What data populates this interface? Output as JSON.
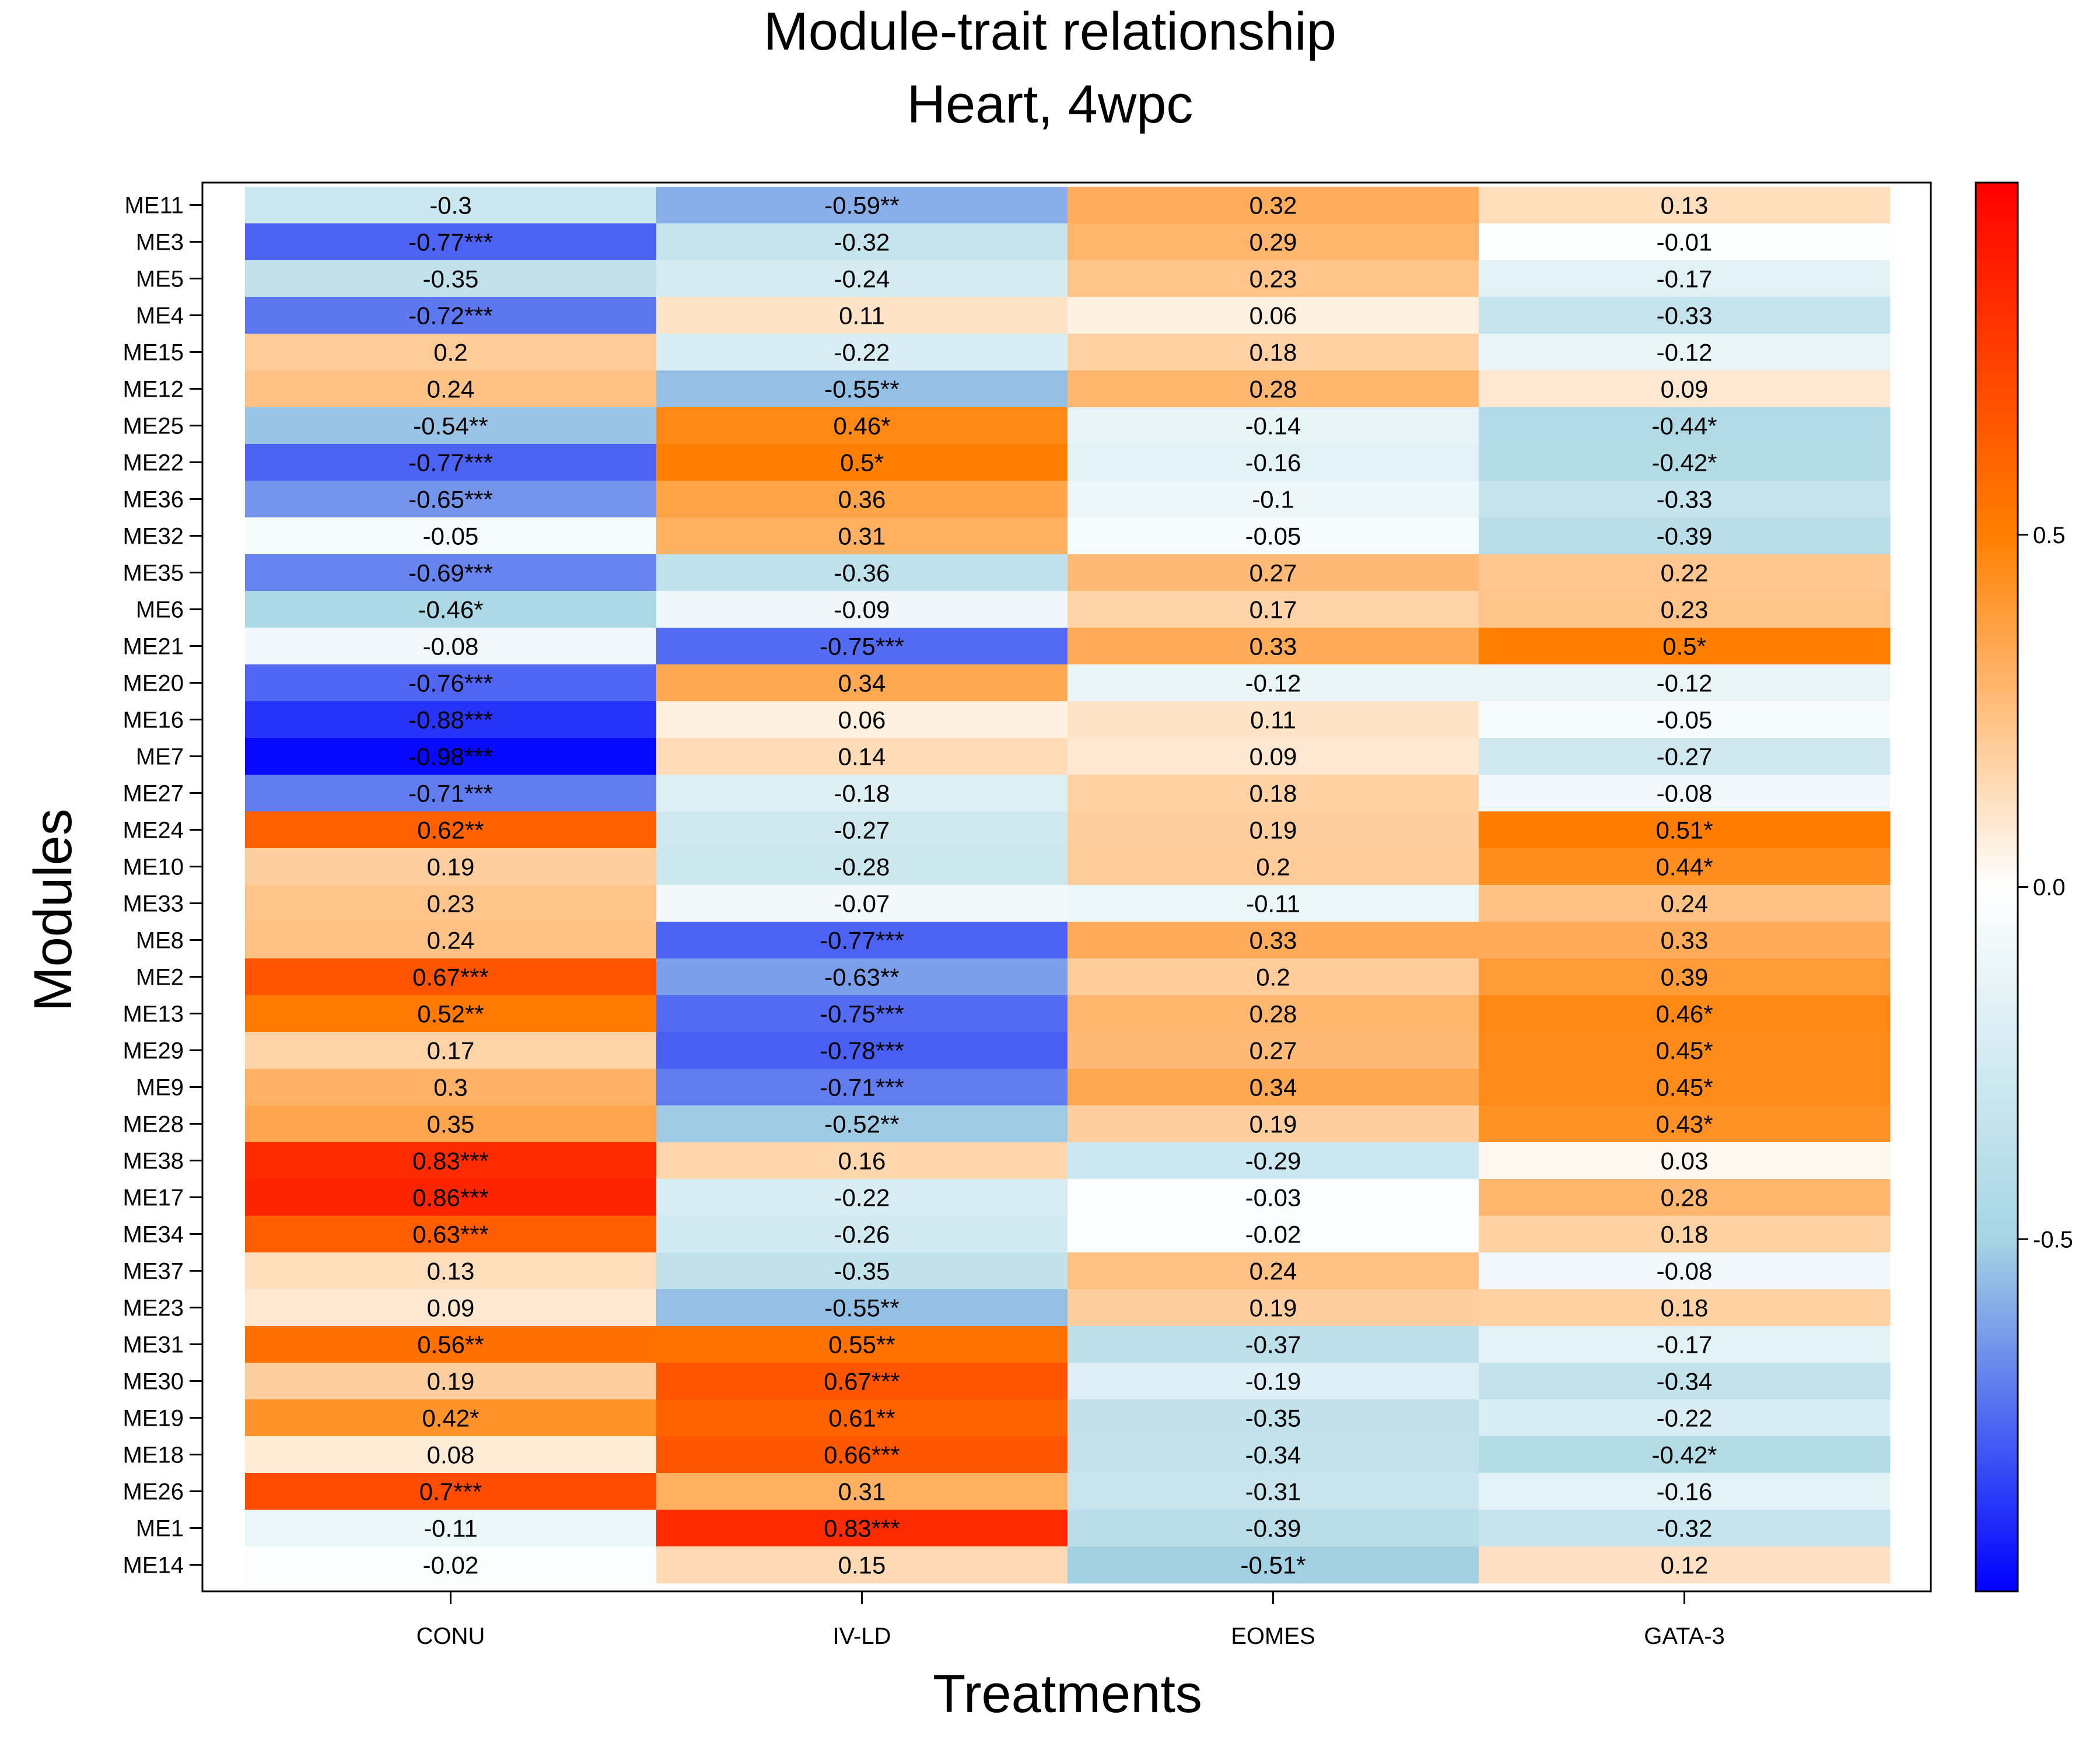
{
  "chart_data": {
    "type": "heatmap",
    "title": "Module-trait relationship",
    "subtitle": "Heart, 4wpc",
    "xlabel": "Treatments",
    "ylabel": "Modules",
    "x_categories": [
      "CONU",
      "IV-LD",
      "EOMES",
      "GATA-3"
    ],
    "y_categories": [
      "ME11",
      "ME3",
      "ME5",
      "ME4",
      "ME15",
      "ME12",
      "ME25",
      "ME22",
      "ME36",
      "ME32",
      "ME35",
      "ME6",
      "ME21",
      "ME20",
      "ME16",
      "ME7",
      "ME27",
      "ME24",
      "ME10",
      "ME33",
      "ME8",
      "ME2",
      "ME13",
      "ME29",
      "ME9",
      "ME28",
      "ME38",
      "ME17",
      "ME34",
      "ME37",
      "ME23",
      "ME31",
      "ME30",
      "ME19",
      "ME18",
      "ME26",
      "ME1",
      "ME14"
    ],
    "values": [
      [
        -0.3,
        -0.59,
        0.32,
        0.13
      ],
      [
        -0.77,
        -0.32,
        0.29,
        -0.01
      ],
      [
        -0.35,
        -0.24,
        0.23,
        -0.17
      ],
      [
        -0.72,
        0.11,
        0.06,
        -0.33
      ],
      [
        0.2,
        -0.22,
        0.18,
        -0.12
      ],
      [
        0.24,
        -0.55,
        0.28,
        0.09
      ],
      [
        -0.54,
        0.46,
        -0.14,
        -0.44
      ],
      [
        -0.77,
        0.5,
        -0.16,
        -0.42
      ],
      [
        -0.65,
        0.36,
        -0.1,
        -0.33
      ],
      [
        -0.05,
        0.31,
        -0.05,
        -0.39
      ],
      [
        -0.69,
        -0.36,
        0.27,
        0.22
      ],
      [
        -0.46,
        -0.09,
        0.17,
        0.23
      ],
      [
        -0.08,
        -0.75,
        0.33,
        0.5
      ],
      [
        -0.76,
        0.34,
        -0.12,
        -0.12
      ],
      [
        -0.88,
        0.06,
        0.11,
        -0.05
      ],
      [
        -0.98,
        0.14,
        0.09,
        -0.27
      ],
      [
        -0.71,
        -0.18,
        0.18,
        -0.08
      ],
      [
        0.62,
        -0.27,
        0.19,
        0.51
      ],
      [
        0.19,
        -0.28,
        0.2,
        0.44
      ],
      [
        0.23,
        -0.07,
        -0.11,
        0.24
      ],
      [
        0.24,
        -0.77,
        0.33,
        0.33
      ],
      [
        0.67,
        -0.63,
        0.2,
        0.39
      ],
      [
        0.52,
        -0.75,
        0.28,
        0.46
      ],
      [
        0.17,
        -0.78,
        0.27,
        0.45
      ],
      [
        0.3,
        -0.71,
        0.34,
        0.45
      ],
      [
        0.35,
        -0.52,
        0.19,
        0.43
      ],
      [
        0.83,
        0.16,
        -0.29,
        0.03
      ],
      [
        0.86,
        -0.22,
        -0.03,
        0.28
      ],
      [
        0.63,
        -0.26,
        -0.02,
        0.18
      ],
      [
        0.13,
        -0.35,
        0.24,
        -0.08
      ],
      [
        0.09,
        -0.55,
        0.19,
        0.18
      ],
      [
        0.56,
        0.55,
        -0.37,
        -0.17
      ],
      [
        0.19,
        0.67,
        -0.19,
        -0.34
      ],
      [
        0.42,
        0.61,
        -0.35,
        -0.22
      ],
      [
        0.08,
        0.66,
        -0.34,
        -0.42
      ],
      [
        0.7,
        0.31,
        -0.31,
        -0.16
      ],
      [
        -0.11,
        0.83,
        -0.39,
        -0.32
      ],
      [
        -0.02,
        0.15,
        -0.51,
        0.12
      ]
    ],
    "cell_labels": [
      [
        "-0.3",
        "-0.59**",
        "0.32",
        "0.13"
      ],
      [
        "-0.77***",
        "-0.32",
        "0.29",
        "-0.01"
      ],
      [
        "-0.35",
        "-0.24",
        "0.23",
        "-0.17"
      ],
      [
        "-0.72***",
        "0.11",
        "0.06",
        "-0.33"
      ],
      [
        "0.2",
        "-0.22",
        "0.18",
        "-0.12"
      ],
      [
        "0.24",
        "-0.55**",
        "0.28",
        "0.09"
      ],
      [
        "-0.54**",
        "0.46*",
        "-0.14",
        "-0.44*"
      ],
      [
        "-0.77***",
        "0.5*",
        "-0.16",
        "-0.42*"
      ],
      [
        "-0.65***",
        "0.36",
        "-0.1",
        "-0.33"
      ],
      [
        "-0.05",
        "0.31",
        "-0.05",
        "-0.39"
      ],
      [
        "-0.69***",
        "-0.36",
        "0.27",
        "0.22"
      ],
      [
        "-0.46*",
        "-0.09",
        "0.17",
        "0.23"
      ],
      [
        "-0.08",
        "-0.75***",
        "0.33",
        "0.5*"
      ],
      [
        "-0.76***",
        "0.34",
        "-0.12",
        "-0.12"
      ],
      [
        "-0.88***",
        "0.06",
        "0.11",
        "-0.05"
      ],
      [
        "-0.98***",
        "0.14",
        "0.09",
        "-0.27"
      ],
      [
        "-0.71***",
        "-0.18",
        "0.18",
        "-0.08"
      ],
      [
        "0.62**",
        "-0.27",
        "0.19",
        "0.51*"
      ],
      [
        "0.19",
        "-0.28",
        "0.2",
        "0.44*"
      ],
      [
        "0.23",
        "-0.07",
        "-0.11",
        "0.24"
      ],
      [
        "0.24",
        "-0.77***",
        "0.33",
        "0.33"
      ],
      [
        "0.67***",
        "-0.63**",
        "0.2",
        "0.39"
      ],
      [
        "0.52**",
        "-0.75***",
        "0.28",
        "0.46*"
      ],
      [
        "0.17",
        "-0.78***",
        "0.27",
        "0.45*"
      ],
      [
        "0.3",
        "-0.71***",
        "0.34",
        "0.45*"
      ],
      [
        "0.35",
        "-0.52**",
        "0.19",
        "0.43*"
      ],
      [
        "0.83***",
        "0.16",
        "-0.29",
        "0.03"
      ],
      [
        "0.86***",
        "-0.22",
        "-0.03",
        "0.28"
      ],
      [
        "0.63***",
        "-0.26",
        "-0.02",
        "0.18"
      ],
      [
        "0.13",
        "-0.35",
        "0.24",
        "-0.08"
      ],
      [
        "0.09",
        "-0.55**",
        "0.19",
        "0.18"
      ],
      [
        "0.56**",
        "0.55**",
        "-0.37",
        "-0.17"
      ],
      [
        "0.19",
        "0.67***",
        "-0.19",
        "-0.34"
      ],
      [
        "0.42*",
        "0.61**",
        "-0.35",
        "-0.22"
      ],
      [
        "0.08",
        "0.66***",
        "-0.34",
        "-0.42*"
      ],
      [
        "0.7***",
        "0.31",
        "-0.31",
        "-0.16"
      ],
      [
        "-0.11",
        "0.83***",
        "-0.39",
        "-0.32"
      ],
      [
        "-0.02",
        "0.15",
        "-0.51*",
        "0.12"
      ]
    ],
    "color_scale": {
      "min": -1,
      "max": 1,
      "stops": [
        {
          "value": -1,
          "color": "#0000ff"
        },
        {
          "value": -0.5,
          "color": "#a6d5e3"
        },
        {
          "value": 0,
          "color": "#ffffff"
        },
        {
          "value": 0.5,
          "color": "#ff7f00"
        },
        {
          "value": 1,
          "color": "#ff0000"
        }
      ]
    },
    "colorbar_ticks": [
      {
        "value": 0.5,
        "label": "0.5"
      },
      {
        "value": 0,
        "label": "0.0"
      },
      {
        "value": -0.5,
        "label": "-0.5"
      }
    ],
    "legend_position": "right"
  }
}
